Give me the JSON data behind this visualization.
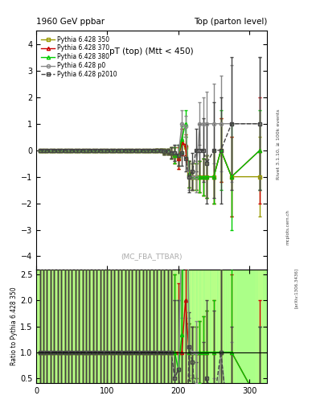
{
  "title_left": "1960 GeV ppbar",
  "title_right": "Top (parton level)",
  "plot_title": "pT (top) (Mtt < 450)",
  "watermark": "(MC_FBA_TTBAR)",
  "right_label": "Rivet 3.1.10, ≥ 100k events",
  "arxiv_label": "[arXiv:1306.3436]",
  "mcplots_label": "mcplots.cern.ch",
  "ylabel_ratio": "Ratio to Pythia 6.428 350",
  "xlim": [
    0,
    325
  ],
  "ylim_main": [
    -4.5,
    4.5
  ],
  "ylim_ratio": [
    0.4,
    2.6
  ],
  "yticks_main": [
    -4,
    -3,
    -2,
    -1,
    0,
    1,
    2,
    3,
    4
  ],
  "yticks_ratio_shown": [
    0.5,
    1.0,
    1.5,
    2.0,
    2.5
  ],
  "xticks": [
    0,
    100,
    200,
    300
  ],
  "series": [
    {
      "label": "Pythia 6.428 350",
      "color": "#999900",
      "marker": "s",
      "linestyle": "-",
      "linewidth": 1.0,
      "markersize": 3,
      "fillstyle": "none",
      "x": [
        5,
        10,
        15,
        20,
        25,
        30,
        35,
        40,
        45,
        50,
        55,
        60,
        65,
        70,
        75,
        80,
        85,
        90,
        95,
        100,
        105,
        110,
        115,
        120,
        125,
        130,
        135,
        140,
        145,
        150,
        155,
        160,
        165,
        170,
        175,
        180,
        185,
        190,
        195,
        200,
        205,
        210,
        215,
        220,
        225,
        230,
        235,
        240,
        250,
        260,
        275,
        315
      ],
      "y": [
        0,
        0,
        0,
        0,
        0,
        0,
        0,
        0,
        0,
        0,
        0,
        0,
        0,
        0,
        0,
        0,
        0,
        0,
        0,
        0,
        0,
        0,
        0,
        0,
        0,
        0,
        0,
        0,
        0,
        0,
        0,
        0,
        0,
        0,
        0,
        -0.05,
        -0.05,
        -0.1,
        -0.2,
        -0.3,
        0.3,
        0.1,
        -0.9,
        -1.0,
        -1.0,
        -1.0,
        -1.0,
        -1.0,
        -1.0,
        0,
        -1.0,
        -1.0
      ],
      "yerr": [
        0.01,
        0.01,
        0.01,
        0.01,
        0.01,
        0.01,
        0.01,
        0.01,
        0.01,
        0.01,
        0.01,
        0.01,
        0.01,
        0.01,
        0.01,
        0.01,
        0.01,
        0.01,
        0.01,
        0.01,
        0.01,
        0.01,
        0.01,
        0.01,
        0.01,
        0.01,
        0.01,
        0.01,
        0.01,
        0.01,
        0.02,
        0.02,
        0.02,
        0.05,
        0.05,
        0.1,
        0.1,
        0.2,
        0.3,
        0.4,
        0.5,
        0.4,
        0.5,
        0.5,
        0.5,
        0.6,
        0.7,
        0.8,
        1.0,
        1.2,
        1.5,
        1.5
      ],
      "is_reference": true
    },
    {
      "label": "Pythia 6.428 370",
      "color": "#cc0000",
      "marker": "^",
      "linestyle": "-",
      "linewidth": 1.0,
      "markersize": 3,
      "fillstyle": "none",
      "x": [
        5,
        10,
        15,
        20,
        25,
        30,
        35,
        40,
        45,
        50,
        55,
        60,
        65,
        70,
        75,
        80,
        85,
        90,
        95,
        100,
        105,
        110,
        115,
        120,
        125,
        130,
        135,
        140,
        145,
        150,
        155,
        160,
        165,
        170,
        175,
        180,
        185,
        190,
        195,
        200,
        205,
        210,
        215,
        220,
        225,
        230,
        235,
        240,
        250,
        260,
        275,
        315
      ],
      "y": [
        0,
        0,
        0,
        0,
        0,
        0,
        0,
        0,
        0,
        0,
        0,
        0,
        0,
        0,
        0,
        0,
        0,
        0,
        0,
        0,
        0,
        0,
        0,
        0,
        0,
        0,
        0,
        0,
        0,
        0,
        0,
        0,
        0,
        0,
        0,
        -0.05,
        -0.05,
        -0.1,
        -0.2,
        -0.3,
        0.3,
        0.2,
        -0.9,
        -1.0,
        -1.0,
        -1.0,
        -1.0,
        -1.0,
        -1.0,
        0,
        -1.0,
        0
      ],
      "yerr": [
        0.01,
        0.01,
        0.01,
        0.01,
        0.01,
        0.01,
        0.01,
        0.01,
        0.01,
        0.01,
        0.01,
        0.01,
        0.01,
        0.01,
        0.01,
        0.01,
        0.01,
        0.01,
        0.01,
        0.01,
        0.01,
        0.01,
        0.01,
        0.01,
        0.01,
        0.01,
        0.01,
        0.01,
        0.01,
        0.01,
        0.02,
        0.02,
        0.02,
        0.05,
        0.05,
        0.1,
        0.1,
        0.2,
        0.3,
        0.4,
        0.5,
        0.4,
        0.5,
        0.5,
        0.5,
        0.6,
        0.7,
        0.8,
        1.0,
        1.2,
        1.5,
        2.0
      ]
    },
    {
      "label": "Pythia 6.428 380",
      "color": "#00cc00",
      "marker": "^",
      "linestyle": "-",
      "linewidth": 1.0,
      "markersize": 3,
      "fillstyle": "none",
      "x": [
        5,
        10,
        15,
        20,
        25,
        30,
        35,
        40,
        45,
        50,
        55,
        60,
        65,
        70,
        75,
        80,
        85,
        90,
        95,
        100,
        105,
        110,
        115,
        120,
        125,
        130,
        135,
        140,
        145,
        150,
        155,
        160,
        165,
        170,
        175,
        180,
        185,
        190,
        195,
        200,
        205,
        210,
        215,
        220,
        225,
        230,
        235,
        240,
        250,
        260,
        275,
        315
      ],
      "y": [
        0,
        0,
        0,
        0,
        0,
        0,
        0,
        0,
        0,
        0,
        0,
        0,
        0,
        0,
        0,
        0,
        0,
        0,
        0,
        0,
        0,
        0,
        0,
        0,
        0,
        0,
        0,
        0,
        0,
        0,
        0,
        0,
        0,
        0,
        0,
        -0.05,
        -0.05,
        -0.1,
        -0.2,
        -0.2,
        0.4,
        1.0,
        -0.9,
        -1.0,
        -1.0,
        -1.0,
        -1.0,
        -1.0,
        -1.0,
        0,
        -1.0,
        0
      ],
      "yerr": [
        0.01,
        0.01,
        0.01,
        0.01,
        0.01,
        0.01,
        0.01,
        0.01,
        0.01,
        0.01,
        0.01,
        0.01,
        0.01,
        0.01,
        0.01,
        0.01,
        0.01,
        0.01,
        0.01,
        0.01,
        0.01,
        0.01,
        0.01,
        0.01,
        0.01,
        0.01,
        0.01,
        0.01,
        0.01,
        0.01,
        0.02,
        0.02,
        0.02,
        0.05,
        0.05,
        0.1,
        0.1,
        0.2,
        0.3,
        0.4,
        0.5,
        0.5,
        0.5,
        0.5,
        0.5,
        0.6,
        0.7,
        0.8,
        1.0,
        1.5,
        2.0,
        1.5
      ]
    },
    {
      "label": "Pythia 6.428 p0",
      "color": "#888888",
      "marker": "o",
      "linestyle": "-",
      "linewidth": 1.0,
      "markersize": 3,
      "fillstyle": "none",
      "x": [
        5,
        10,
        15,
        20,
        25,
        30,
        35,
        40,
        45,
        50,
        55,
        60,
        65,
        70,
        75,
        80,
        85,
        90,
        95,
        100,
        105,
        110,
        115,
        120,
        125,
        130,
        135,
        140,
        145,
        150,
        155,
        160,
        165,
        170,
        175,
        180,
        185,
        190,
        195,
        200,
        205,
        210,
        215,
        220,
        225,
        230,
        235,
        240,
        250,
        260,
        275,
        315
      ],
      "y": [
        0,
        0,
        0,
        0,
        0,
        0,
        0,
        0,
        0,
        0,
        0,
        0,
        0,
        0,
        0,
        0,
        0,
        0,
        0,
        0,
        0,
        0,
        0,
        0,
        0,
        0,
        0,
        0,
        0,
        0,
        0,
        0,
        0,
        0,
        0,
        -0.05,
        -0.05,
        -0.1,
        -0.1,
        -0.2,
        1.0,
        0.9,
        -1.0,
        -1.0,
        -1.0,
        1.0,
        1.0,
        1.0,
        1.0,
        1.0,
        1.0,
        1.0
      ],
      "yerr": [
        0.01,
        0.01,
        0.01,
        0.01,
        0.01,
        0.01,
        0.01,
        0.01,
        0.01,
        0.01,
        0.01,
        0.01,
        0.01,
        0.01,
        0.01,
        0.01,
        0.01,
        0.01,
        0.01,
        0.01,
        0.01,
        0.01,
        0.01,
        0.01,
        0.01,
        0.01,
        0.01,
        0.01,
        0.01,
        0.01,
        0.02,
        0.02,
        0.02,
        0.05,
        0.05,
        0.1,
        0.1,
        0.2,
        0.3,
        0.4,
        0.5,
        0.4,
        0.5,
        0.5,
        0.6,
        0.8,
        1.0,
        1.2,
        1.5,
        1.8,
        2.2,
        2.5
      ]
    },
    {
      "label": "Pythia 6.428 p2010",
      "color": "#444444",
      "marker": "s",
      "linestyle": "--",
      "linewidth": 1.0,
      "markersize": 3,
      "fillstyle": "none",
      "x": [
        5,
        10,
        15,
        20,
        25,
        30,
        35,
        40,
        45,
        50,
        55,
        60,
        65,
        70,
        75,
        80,
        85,
        90,
        95,
        100,
        105,
        110,
        115,
        120,
        125,
        130,
        135,
        140,
        145,
        150,
        155,
        160,
        165,
        170,
        175,
        180,
        185,
        190,
        195,
        200,
        205,
        210,
        215,
        220,
        225,
        230,
        235,
        240,
        250,
        260,
        275,
        315
      ],
      "y": [
        0,
        0,
        0,
        0,
        0,
        0,
        0,
        0,
        0,
        0,
        0,
        0,
        0,
        0,
        0,
        0,
        0,
        0,
        0,
        0,
        0,
        0,
        0,
        0,
        0,
        0,
        0,
        0,
        0,
        0,
        0,
        0,
        0,
        0,
        0,
        -0.05,
        -0.05,
        -0.1,
        -0.1,
        -0.2,
        -0.1,
        -0.3,
        -1.0,
        -0.8,
        0.0,
        0.0,
        0,
        -0.5,
        0,
        0,
        1.0,
        1.0
      ],
      "yerr": [
        0.01,
        0.01,
        0.01,
        0.01,
        0.01,
        0.01,
        0.01,
        0.01,
        0.01,
        0.01,
        0.01,
        0.01,
        0.01,
        0.01,
        0.01,
        0.01,
        0.01,
        0.01,
        0.01,
        0.01,
        0.01,
        0.01,
        0.01,
        0.01,
        0.01,
        0.01,
        0.01,
        0.01,
        0.01,
        0.01,
        0.02,
        0.02,
        0.02,
        0.05,
        0.05,
        0.1,
        0.1,
        0.2,
        0.3,
        0.4,
        0.5,
        0.5,
        0.6,
        0.7,
        0.8,
        1.0,
        1.2,
        1.5,
        1.8,
        2.0,
        2.5,
        2.5
      ]
    }
  ],
  "bg_yellow": "#ffff88",
  "bg_green": "#88ff88",
  "ref_err_color": "#cccc00",
  "background_color": "#ffffff"
}
